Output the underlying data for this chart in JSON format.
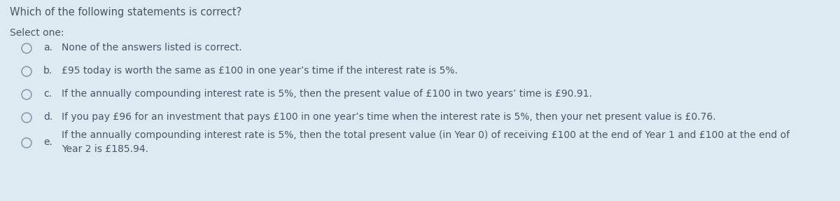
{
  "background_color": "#deeaf1",
  "text_color": "#4a5568",
  "title": "Which of the following statements is correct?",
  "select_one": "Select one:",
  "options": [
    {
      "letter": "a.",
      "text": "None of the answers listed is correct."
    },
    {
      "letter": "b.",
      "text": "£95 today is worth the same as £100 in one year’s time if the interest rate is 5%."
    },
    {
      "letter": "c.",
      "text": "If the annually compounding interest rate is 5%, then the present value of £100 in two years’ time is £90.91."
    },
    {
      "letter": "d.",
      "text": "If you pay £96 for an investment that pays £100 in one year’s time when the interest rate is 5%, then your net present value is £0.76."
    },
    {
      "letter": "e.",
      "text": "If the annually compounding interest rate is 5%, then the total present value (in Year 0) of receiving £100 at the end of Year 1 and £100 at the end of\nYear 2 is £185.94."
    }
  ],
  "title_fontsize": 10.5,
  "body_fontsize": 10,
  "circle_color": "#7a8fa0",
  "circle_linewidth": 1.0,
  "fig_width": 12.0,
  "fig_height": 2.87,
  "dpi": 100
}
